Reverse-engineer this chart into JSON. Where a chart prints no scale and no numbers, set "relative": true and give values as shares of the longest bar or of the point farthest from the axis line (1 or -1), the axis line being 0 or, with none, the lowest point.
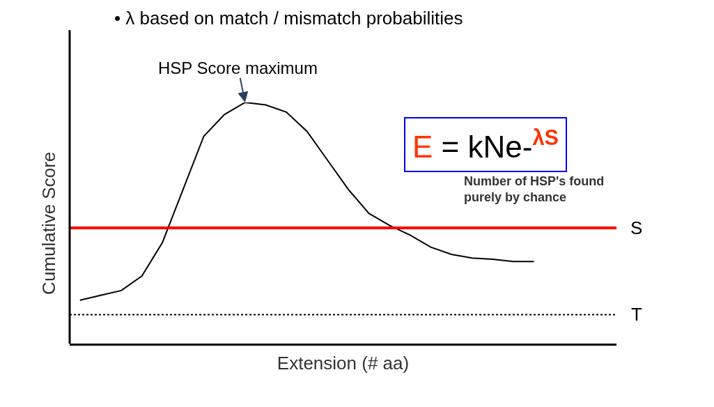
{
  "chart_data": {
    "type": "line",
    "relative": true,
    "xlabel": "Extension (# aa)",
    "ylabel": "Cumulative Score",
    "categories": [
      null,
      null,
      null,
      null,
      null,
      null,
      null,
      null,
      null,
      null,
      null,
      null,
      null,
      null,
      null,
      null,
      null,
      null,
      null,
      null,
      null,
      null,
      null
    ],
    "series": [
      {
        "color": "#000000",
        "values": [
          0.18,
          0.2,
          0.22,
          0.28,
          0.42,
          0.64,
          0.86,
          0.95,
          1,
          0.99,
          0.96,
          0.88,
          0.76,
          0.64,
          0.54,
          0.49,
          0.45,
          0.4,
          0.37,
          0.355,
          0.35,
          0.34,
          0.34
        ]
      }
    ],
    "ref_lines": [
      {
        "axis": "y",
        "value": 0.48,
        "label": "S",
        "color": "#ff0000",
        "line_style": "solid"
      },
      {
        "axis": "y",
        "value": 0.12,
        "label": "T",
        "color": "#000000",
        "line_style": "dotted"
      }
    ],
    "annotations": [
      "• λ based on match / mismatch probabilities",
      "HSP Score maximum",
      "E = kNe-$^{λS}$",
      "Number of HSP's found\npurely by chance"
    ],
    "legend": false,
    "marker": "none",
    "line_style": "solid"
  }
}
